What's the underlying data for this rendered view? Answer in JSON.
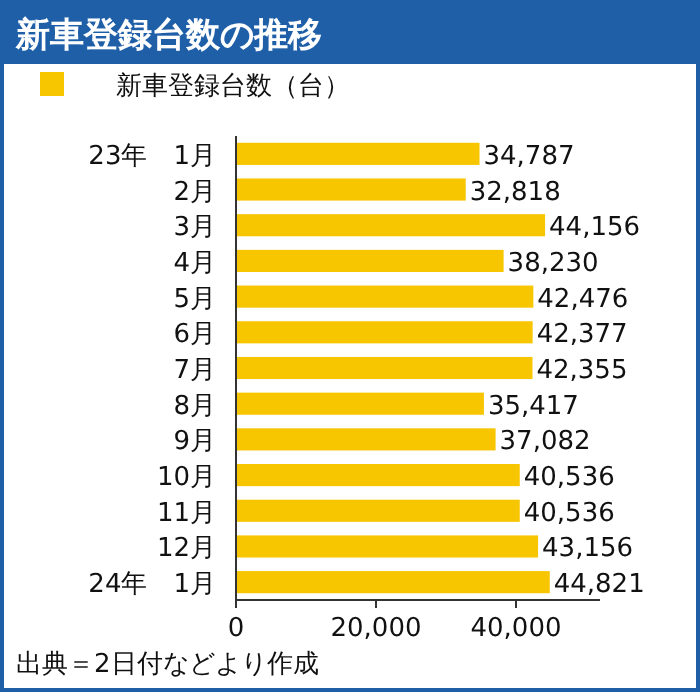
{
  "chart_data": {
    "type": "bar",
    "orientation": "horizontal",
    "title": "新車登録台数の推移",
    "categories": [
      "23年　1月",
      "2月",
      "3月",
      "4月",
      "5月",
      "6月",
      "7月",
      "8月",
      "9月",
      "10月",
      "11月",
      "12月",
      "24年　1月"
    ],
    "series": [
      {
        "name": "新車登録台数（台）",
        "color": "#f7c600",
        "values": [
          34787,
          32818,
          44156,
          38230,
          42476,
          42377,
          42355,
          35417,
          37082,
          40536,
          40536,
          43156,
          44821
        ],
        "value_labels": [
          "34,787",
          "32,818",
          "44,156",
          "38,230",
          "42,476",
          "42,377",
          "42,355",
          "35,417",
          "37,082",
          "40,536",
          "40,536",
          "43,156",
          "44,821"
        ]
      }
    ],
    "xlim": [
      0,
      52000
    ],
    "xticks": [
      0,
      {
        "value": 20000,
        "label": "20,000"
      },
      {
        "value": 40000,
        "label": "40,000"
      }
    ],
    "legend": "top",
    "grid": false,
    "annotations": [
      "出典＝2日付などより作成"
    ]
  }
}
